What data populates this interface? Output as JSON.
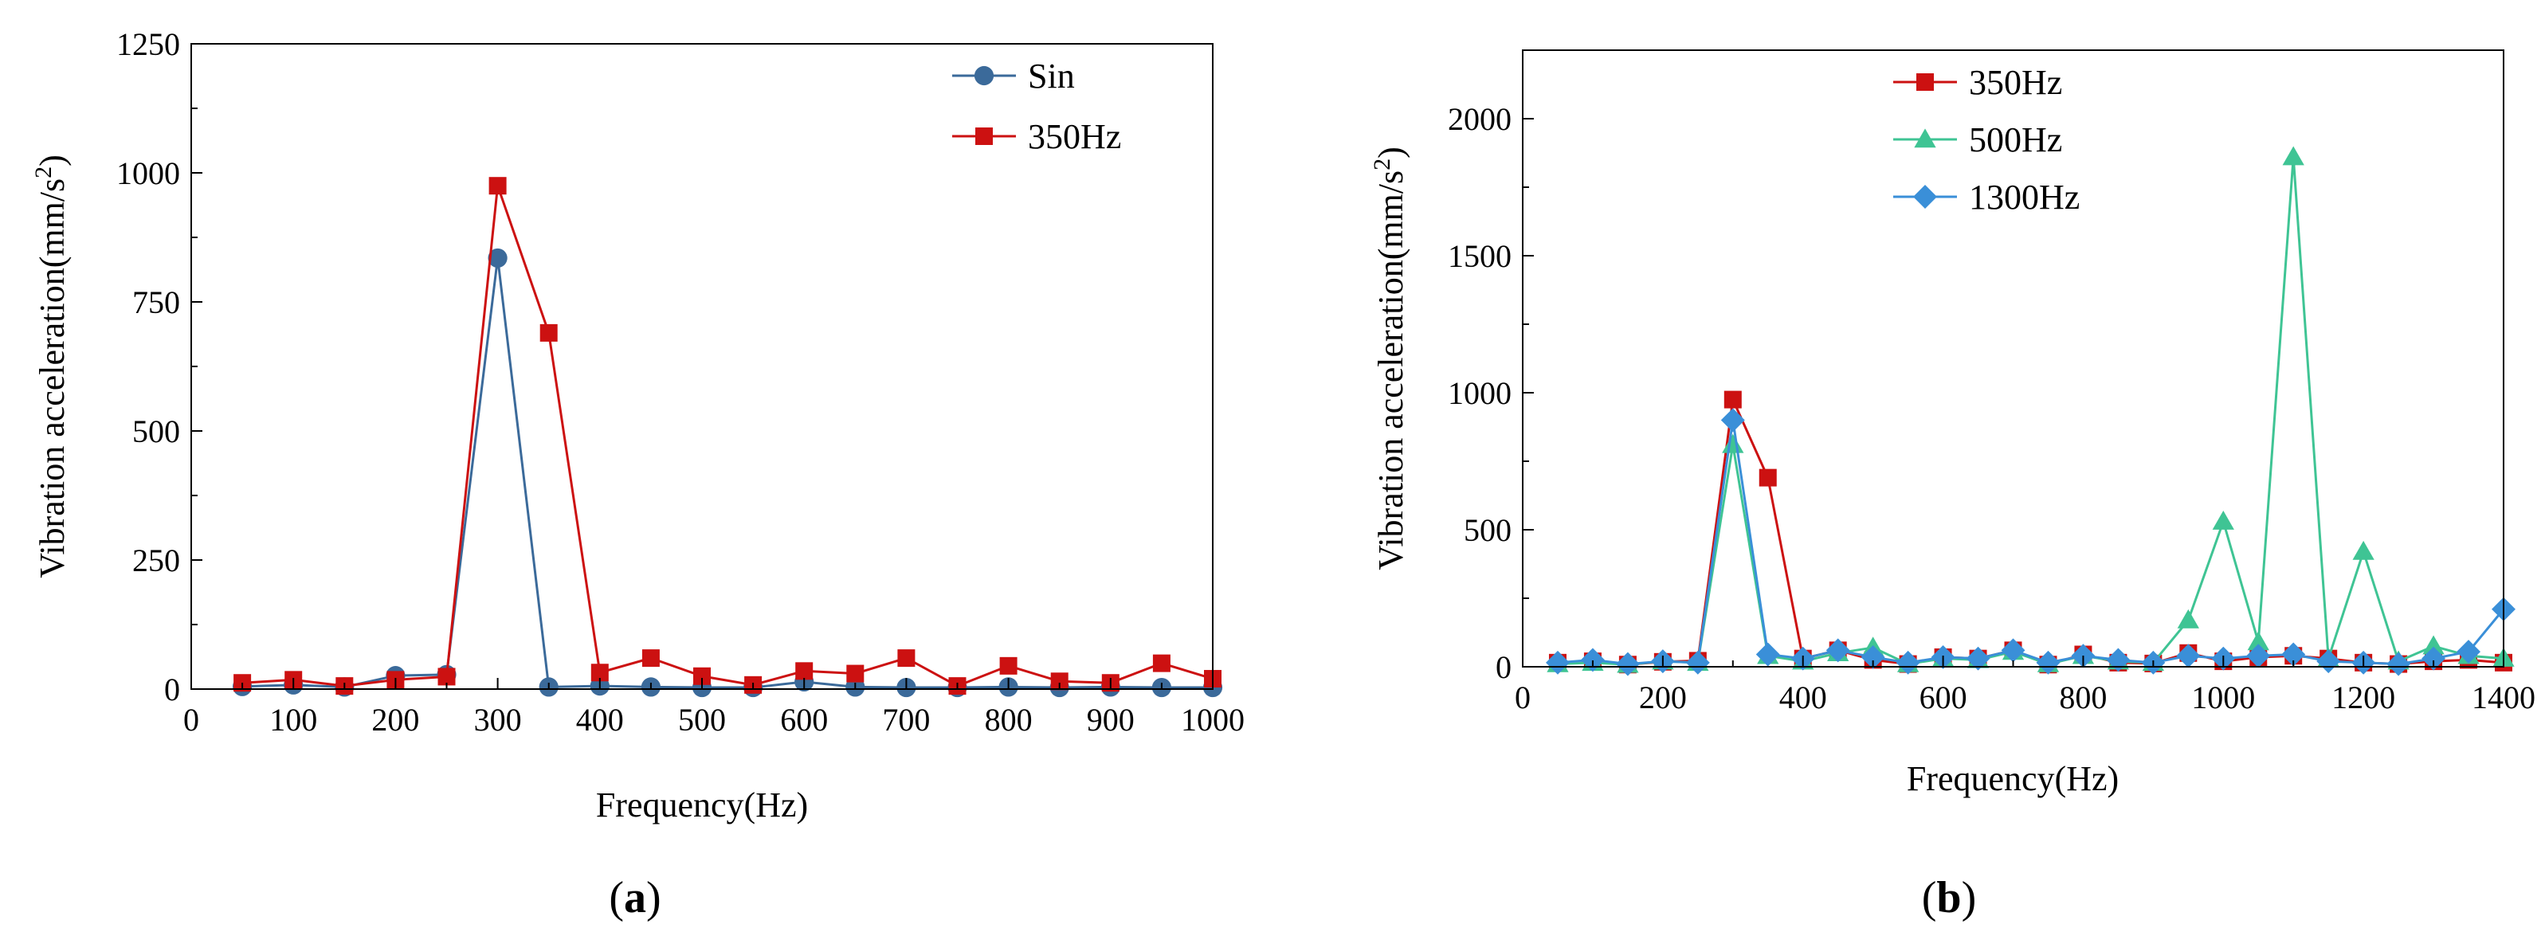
{
  "chart_data": [
    {
      "type": "line",
      "panel_label": {
        "open": "(",
        "letter": "a",
        "close": ")"
      },
      "xlabel": "Frequency(Hz)",
      "ylabel": "Vibration acceleration(mm/s",
      "ylabel_sup": "2",
      "ylabel_close": ")",
      "xlim": [
        0,
        1000
      ],
      "ylim": [
        0,
        1250
      ],
      "xticks": [
        0,
        100,
        200,
        300,
        400,
        500,
        600,
        700,
        800,
        900,
        1000
      ],
      "yticks": [
        0,
        250,
        500,
        750,
        1000,
        1250
      ],
      "legend_position": "top-right",
      "series": [
        {
          "name": "Sin",
          "color": "#3b6a9a",
          "marker": "circle",
          "x": [
            50,
            100,
            150,
            200,
            250,
            300,
            350,
            400,
            450,
            500,
            550,
            600,
            650,
            700,
            750,
            800,
            850,
            900,
            950,
            1000
          ],
          "y": [
            5,
            8,
            4,
            26,
            28,
            835,
            4,
            6,
            4,
            3,
            3,
            14,
            4,
            3,
            3,
            4,
            3,
            4,
            3,
            3
          ]
        },
        {
          "name": "350Hz",
          "color": "#cc1111",
          "marker": "square",
          "x": [
            50,
            100,
            150,
            200,
            250,
            300,
            350,
            400,
            450,
            500,
            550,
            600,
            650,
            700,
            750,
            800,
            850,
            900,
            950,
            1000
          ],
          "y": [
            12,
            18,
            6,
            18,
            24,
            975,
            690,
            32,
            60,
            25,
            8,
            35,
            30,
            60,
            6,
            45,
            15,
            12,
            50,
            20
          ]
        }
      ]
    },
    {
      "type": "line",
      "panel_label": {
        "open": "(",
        "letter": "b",
        "close": ")"
      },
      "xlabel": "Frequency(Hz)",
      "ylabel": "Vibration acceleration(mm/s",
      "ylabel_sup": "2",
      "ylabel_close": ")",
      "xlim": [
        0,
        1400
      ],
      "ylim": [
        0,
        2250
      ],
      "xticks": [
        0,
        200,
        400,
        600,
        800,
        1000,
        1200,
        1400
      ],
      "yticks": [
        0,
        500,
        1000,
        1500,
        2000
      ],
      "legend_position": "top-left",
      "series": [
        {
          "name": "350Hz",
          "color": "#cc1111",
          "marker": "square",
          "x": [
            50,
            100,
            150,
            200,
            250,
            300,
            350,
            400,
            450,
            500,
            550,
            600,
            650,
            700,
            750,
            800,
            850,
            900,
            950,
            1000,
            1050,
            1100,
            1150,
            1200,
            1250,
            1300,
            1350,
            1400
          ],
          "y": [
            15,
            20,
            8,
            18,
            22,
            975,
            690,
            30,
            60,
            25,
            10,
            35,
            30,
            60,
            8,
            45,
            15,
            12,
            50,
            20,
            35,
            40,
            30,
            15,
            10,
            20,
            25,
            15
          ]
        },
        {
          "name": "500Hz",
          "color": "#3fc494",
          "marker": "triangle",
          "x": [
            50,
            100,
            150,
            200,
            250,
            300,
            350,
            400,
            450,
            500,
            550,
            600,
            650,
            700,
            750,
            800,
            850,
            900,
            950,
            1000,
            1050,
            1100,
            1150,
            1200,
            1250,
            1300,
            1350,
            1400
          ],
          "y": [
            10,
            15,
            8,
            20,
            15,
            810,
            40,
            20,
            50,
            70,
            10,
            30,
            25,
            55,
            10,
            40,
            20,
            15,
            170,
            530,
            90,
            1860,
            30,
            420,
            20,
            75,
            40,
            30
          ]
        },
        {
          "name": "1300Hz",
          "color": "#3a8fd8",
          "marker": "diamond",
          "x": [
            50,
            100,
            150,
            200,
            250,
            300,
            350,
            400,
            450,
            500,
            550,
            600,
            650,
            700,
            750,
            800,
            850,
            900,
            950,
            1000,
            1050,
            1100,
            1150,
            1200,
            1250,
            1300,
            1350,
            1400
          ],
          "y": [
            15,
            25,
            10,
            20,
            15,
            900,
            45,
            30,
            60,
            35,
            15,
            35,
            30,
            60,
            15,
            40,
            25,
            15,
            40,
            30,
            40,
            45,
            20,
            15,
            10,
            30,
            55,
            210
          ]
        }
      ]
    }
  ]
}
